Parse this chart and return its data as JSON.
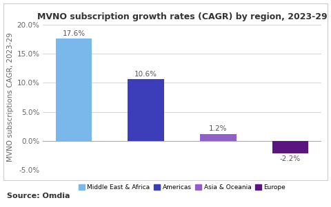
{
  "title": "MVNO subscription growth rates (CAGR) by region, 2023-29",
  "ylabel": "MVNO subscriptions CAGR, 2023-29",
  "source": "Source: Omdia",
  "categories": [
    "Middle East & Africa",
    "Americas",
    "Asia & Oceania",
    "Europe"
  ],
  "values": [
    17.6,
    10.6,
    1.2,
    -2.2
  ],
  "bar_colors": [
    "#7ab8ec",
    "#3c3db8",
    "#9060c8",
    "#5b1580"
  ],
  "value_labels": [
    "17.6%",
    "10.6%",
    "1.2%",
    "-2.2%"
  ],
  "ylim": [
    -5.0,
    20.0
  ],
  "yticks": [
    -5.0,
    0.0,
    5.0,
    10.0,
    15.0,
    20.0
  ],
  "ytick_labels": [
    "-5.0%",
    "0.0%",
    "5.0%",
    "10.0%",
    "15.0%",
    "20.0%"
  ],
  "background_color": "#ffffff",
  "grid_color": "#d0d0d0",
  "title_fontsize": 9,
  "label_fontsize": 7.5,
  "tick_fontsize": 7.5,
  "source_fontsize": 8,
  "value_label_fontsize": 7.5
}
